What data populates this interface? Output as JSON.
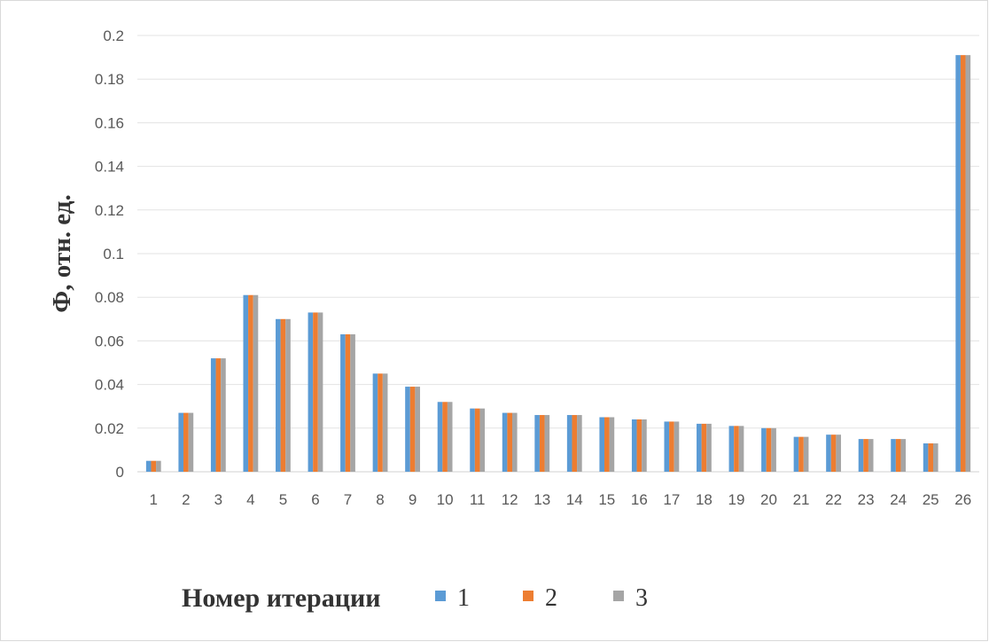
{
  "chart_data": {
    "type": "bar",
    "title": "",
    "xlabel": "Номер итерации",
    "ylabel": "Ф, отн. ед.",
    "ylim": [
      0,
      0.2
    ],
    "yticks": [
      "0",
      "0.02",
      "0.04",
      "0.06",
      "0.08",
      "0.1",
      "0.12",
      "0.14",
      "0.16",
      "0.18",
      "0.2"
    ],
    "grid": true,
    "legend_position": "bottom",
    "categories": [
      "1",
      "2",
      "3",
      "4",
      "5",
      "6",
      "7",
      "8",
      "9",
      "10",
      "11",
      "12",
      "13",
      "14",
      "15",
      "16",
      "17",
      "18",
      "19",
      "20",
      "21",
      "22",
      "23",
      "24",
      "25",
      "26"
    ],
    "series": [
      {
        "name": "1",
        "color": "#5b9bd5",
        "values": [
          0.005,
          0.027,
          0.052,
          0.081,
          0.07,
          0.073,
          0.063,
          0.045,
          0.039,
          0.032,
          0.029,
          0.027,
          0.026,
          0.026,
          0.025,
          0.024,
          0.023,
          0.022,
          0.021,
          0.02,
          0.016,
          0.017,
          0.015,
          0.015,
          0.013,
          0.191
        ]
      },
      {
        "name": "2",
        "color": "#ed7d31",
        "values": [
          0.005,
          0.027,
          0.052,
          0.081,
          0.07,
          0.073,
          0.063,
          0.045,
          0.039,
          0.032,
          0.029,
          0.027,
          0.026,
          0.026,
          0.025,
          0.024,
          0.023,
          0.022,
          0.021,
          0.02,
          0.016,
          0.017,
          0.015,
          0.015,
          0.013,
          0.191
        ]
      },
      {
        "name": "3",
        "color": "#a5a5a5",
        "values": [
          0.005,
          0.027,
          0.052,
          0.081,
          0.07,
          0.073,
          0.063,
          0.045,
          0.039,
          0.032,
          0.029,
          0.027,
          0.026,
          0.026,
          0.025,
          0.024,
          0.023,
          0.022,
          0.021,
          0.02,
          0.016,
          0.017,
          0.015,
          0.015,
          0.013,
          0.191
        ]
      }
    ]
  }
}
